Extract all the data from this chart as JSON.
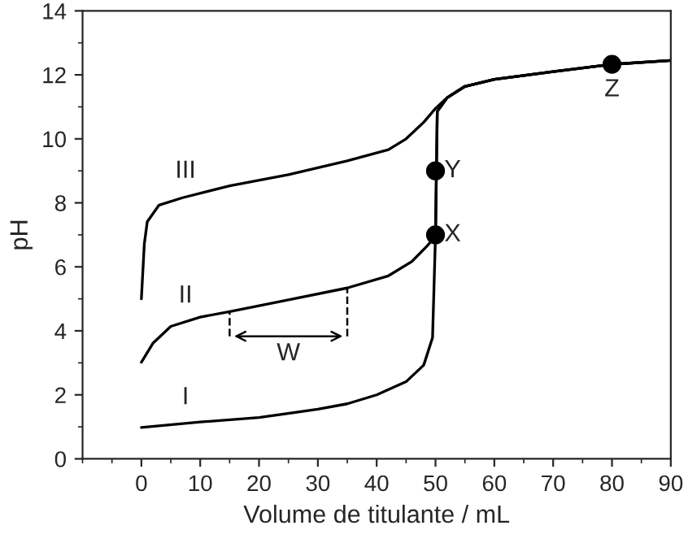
{
  "chart_data": {
    "type": "line",
    "xlabel": "Volume de titulante / mL",
    "ylabel": "pH",
    "xlim": [
      -10,
      90
    ],
    "ylim": [
      0,
      14
    ],
    "xticks": [
      0,
      10,
      20,
      30,
      40,
      50,
      60,
      70,
      80,
      90
    ],
    "yticks": [
      0,
      2,
      4,
      6,
      8,
      10,
      12,
      14
    ],
    "grid": false,
    "legend": false,
    "series": [
      {
        "name": "I",
        "color": "#000000",
        "x": [
          0,
          10,
          20,
          30,
          35,
          40,
          45,
          48,
          49.5,
          50,
          50.3,
          52,
          55,
          60,
          70,
          80,
          90
        ],
        "values": [
          0.98,
          1.15,
          1.29,
          1.55,
          1.72,
          2.0,
          2.41,
          2.93,
          3.79,
          7.0,
          10.86,
          11.29,
          11.64,
          11.86,
          12.1,
          12.33,
          12.45
        ]
      },
      {
        "name": "II",
        "color": "#000000",
        "x": [
          0,
          2,
          5,
          10,
          15,
          25,
          35,
          42,
          46,
          48.5,
          50,
          50.3,
          52,
          55,
          60,
          70,
          80,
          90
        ],
        "values": [
          3.02,
          3.62,
          4.14,
          4.43,
          4.6,
          4.97,
          5.34,
          5.72,
          6.17,
          6.64,
          6.95,
          10.86,
          11.29,
          11.64,
          11.86,
          12.1,
          12.33,
          12.45
        ]
      },
      {
        "name": "III",
        "color": "#000000",
        "x": [
          0,
          0.5,
          1,
          3,
          7,
          15,
          25,
          35,
          42,
          45,
          48,
          50,
          52,
          55,
          60,
          70,
          80,
          90
        ],
        "values": [
          5.0,
          6.72,
          7.41,
          7.93,
          8.16,
          8.53,
          8.88,
          9.31,
          9.66,
          10.0,
          10.52,
          10.95,
          11.29,
          11.64,
          11.86,
          12.1,
          12.33,
          12.45
        ]
      },
      {
        "type": "scatter",
        "color": "#000000",
        "marker": "circle",
        "x": [
          50,
          50,
          80
        ],
        "values": [
          7,
          9,
          12.33
        ],
        "value_labels": [
          "X",
          "Y",
          "Z"
        ]
      }
    ],
    "annotations": [
      "W"
    ]
  }
}
